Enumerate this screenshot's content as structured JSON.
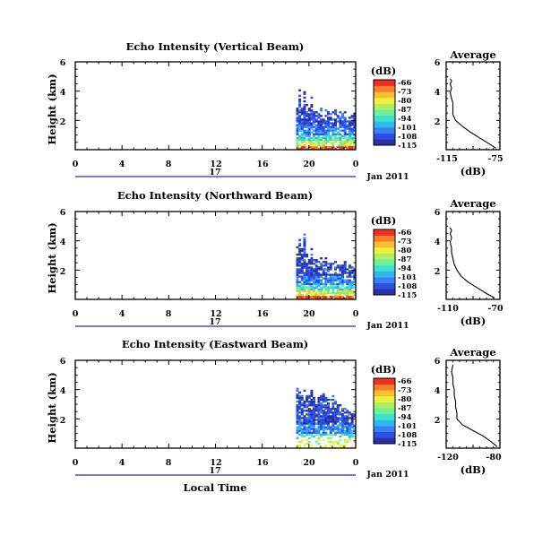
{
  "figure": {
    "xlabel": "Local Time",
    "day_label": "17",
    "date_label": "Jan 2011",
    "colorbar_unit": "(dB)",
    "avg_xlabel": "(dB)"
  },
  "colormap": [
    "#2b30a4",
    "#2d4fe0",
    "#3b7ff5",
    "#30b8f0",
    "#3fe0d0",
    "#6cf09a",
    "#b0f060",
    "#f0f040",
    "#f8c030",
    "#f88028",
    "#f03020"
  ],
  "chart_data": [
    {
      "type": "heatmap",
      "title": "Echo Intensity (Vertical Beam)",
      "xlabel": "",
      "ylabel": "Height (km)",
      "xlim": [
        0,
        24
      ],
      "ylim": [
        0,
        6
      ],
      "xticks": [
        "0",
        "4",
        "8",
        "12",
        "16",
        "20",
        "0"
      ],
      "yticks": [
        "2",
        "4",
        "6"
      ],
      "data_start_hour": 18.9,
      "top_profile_km": [
        3.6,
        4.1,
        3.3,
        3.9,
        3.0,
        2.9,
        3.5,
        2.8,
        2.6,
        2.7,
        2.9,
        2.5,
        2.8,
        2.6,
        2.4,
        2.5,
        2.7,
        2.3,
        2.5,
        2.4,
        2.6,
        2.2,
        2.4,
        2.3,
        2.4
      ],
      "colorbar": {
        "ticks": [
          "-66",
          "-73",
          "-80",
          "-87",
          "-94",
          "-101",
          "-108",
          "-115"
        ],
        "range_db": [
          -115,
          -66
        ]
      },
      "average_profile": {
        "title": "Average",
        "xticks": [
          "-115",
          "-75"
        ],
        "yticks": [
          "2",
          "4",
          "6"
        ],
        "xlim": [
          -115,
          -75
        ],
        "ylim": [
          0,
          6
        ],
        "x_db": [
          -78,
          -83,
          -90,
          -97,
          -103,
          -108,
          -110,
          -110,
          -110,
          -111,
          -112,
          -111,
          -112,
          -111,
          -112
        ],
        "y_km": [
          0.1,
          0.4,
          0.8,
          1.2,
          1.6,
          2.0,
          2.4,
          2.8,
          3.2,
          3.5,
          3.9,
          4.2,
          4.5,
          4.7,
          4.85
        ]
      }
    },
    {
      "type": "heatmap",
      "title": "Echo Intensity (Northward Beam)",
      "xlabel": "",
      "ylabel": "Height (km)",
      "xlim": [
        0,
        24
      ],
      "ylim": [
        0,
        6
      ],
      "xticks": [
        "0",
        "4",
        "8",
        "12",
        "16",
        "20",
        "0"
      ],
      "yticks": [
        "2",
        "4",
        "6"
      ],
      "data_start_hour": 18.9,
      "top_profile_km": [
        3.6,
        4.0,
        3.4,
        4.4,
        3.1,
        3.0,
        3.4,
        2.9,
        2.7,
        2.8,
        3.0,
        2.6,
        2.9,
        2.6,
        2.4,
        2.5,
        2.6,
        2.3,
        2.5,
        2.4,
        2.6,
        2.2,
        2.4,
        2.2,
        2.3
      ],
      "colorbar": {
        "ticks": [
          "-66",
          "-73",
          "-80",
          "-87",
          "-94",
          "-101",
          "-108",
          "-115"
        ],
        "range_db": [
          -115,
          -66
        ]
      },
      "average_profile": {
        "title": "Average",
        "xticks": [
          "-110",
          "-70"
        ],
        "yticks": [
          "2",
          "4",
          "6"
        ],
        "xlim": [
          -110,
          -70
        ],
        "ylim": [
          0,
          6
        ],
        "x_db": [
          -74,
          -80,
          -87,
          -94,
          -99,
          -102,
          -104,
          -105,
          -106,
          -106,
          -107,
          -106,
          -107,
          -106,
          -107
        ],
        "y_km": [
          0.1,
          0.4,
          0.8,
          1.2,
          1.6,
          2.0,
          2.4,
          2.8,
          3.2,
          3.5,
          3.9,
          4.2,
          4.5,
          4.7,
          4.9
        ]
      }
    },
    {
      "type": "heatmap",
      "title": "Echo Intensity (Eastward Beam)",
      "xlabel": "Local Time",
      "ylabel": "Height (km)",
      "xlim": [
        0,
        24
      ],
      "ylim": [
        0,
        6
      ],
      "xticks": [
        "0",
        "4",
        "8",
        "12",
        "16",
        "20",
        "0"
      ],
      "yticks": [
        "2",
        "4",
        "6"
      ],
      "data_start_hour": 18.9,
      "top_profile_km": [
        4.2,
        3.9,
        3.5,
        3.9,
        3.7,
        3.6,
        3.9,
        3.5,
        3.4,
        3.6,
        3.5,
        3.8,
        3.4,
        3.6,
        3.3,
        3.5,
        3.2,
        3.4,
        3.0,
        2.8,
        2.7,
        2.6,
        2.4,
        2.3,
        2.3
      ],
      "colorbar": {
        "ticks": [
          "-66",
          "-73",
          "-80",
          "-87",
          "-94",
          "-101",
          "-108",
          "-115"
        ],
        "range_db": [
          -115,
          -66
        ]
      },
      "average_profile": {
        "title": "Average",
        "xticks": [
          "-120",
          "-80"
        ],
        "yticks": [
          "2",
          "4",
          "6"
        ],
        "xlim": [
          -120,
          -80
        ],
        "ylim": [
          0,
          6
        ],
        "x_db": [
          -82,
          -86,
          -92,
          -100,
          -108,
          -112,
          -112,
          -113,
          -113,
          -114,
          -114,
          -115,
          -115,
          -116,
          -115
        ],
        "y_km": [
          0.1,
          0.4,
          0.8,
          1.2,
          1.6,
          2.0,
          2.4,
          2.8,
          3.2,
          3.6,
          4.0,
          4.4,
          4.8,
          5.2,
          5.7
        ]
      }
    }
  ]
}
